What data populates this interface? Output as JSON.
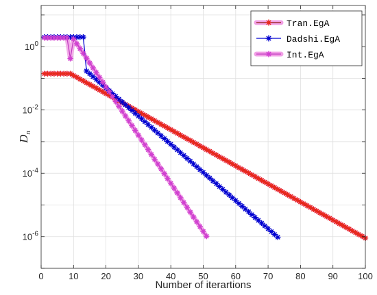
{
  "chart_data": {
    "type": "line",
    "xlabel": "Number of iterartions",
    "ylabel": {
      "main": "D",
      "sub": "n"
    },
    "xlim": [
      0,
      100
    ],
    "ylim_log10": [
      -7,
      1.3
    ],
    "yscale": "log",
    "grid": true,
    "legend_position": "top-right",
    "x_ticks": [
      0,
      10,
      20,
      30,
      40,
      50,
      60,
      70,
      80,
      90,
      100
    ],
    "y_ticks": [
      {
        "base": "10",
        "exp": "0",
        "log10": 0
      },
      {
        "base": "10",
        "exp": "-2",
        "log10": -2
      },
      {
        "base": "10",
        "exp": "-4",
        "log10": -4
      },
      {
        "base": "10",
        "exp": "-6",
        "log10": -6
      }
    ],
    "series": [
      {
        "name": "Tran.EgA",
        "color": "#8b1a0e",
        "marker_color": "#e8281c",
        "halo_color": "#f2a0e6",
        "x_start": 1,
        "x_end": 100,
        "plateau_end": 9,
        "plateau_value": 0.14,
        "end_value": 9e-07
      },
      {
        "name": "Dadshi.EgA",
        "color": "#0000d0",
        "marker_color": "#0000d0",
        "halo_color": "",
        "x_start": 1,
        "x_end": 73,
        "plateau_end": 13,
        "plateau_value": 2.0,
        "drop_value": 0.17,
        "end_value": 9.6e-07
      },
      {
        "name": "Int.EgA",
        "color": "#c03ec0",
        "marker_color": "#d040d0",
        "halo_color": "#f2a0e6",
        "x_start": 1,
        "x_end": 51,
        "plateau_end": 8,
        "plateau_value": 1.9,
        "dip_x": 9,
        "dip_value": 0.42,
        "peak_x": 10,
        "peak_value": 1.75,
        "end_value": 1.03e-06
      }
    ],
    "legend": [
      "Tran.EgA",
      "Dadshi.EgA",
      "Int.EgA"
    ]
  }
}
